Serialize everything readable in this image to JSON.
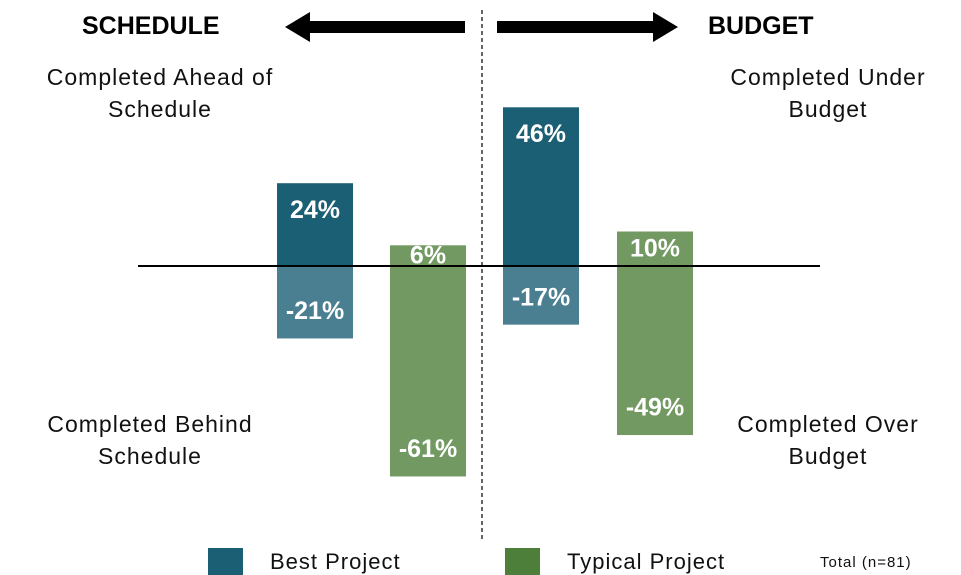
{
  "chart_data": {
    "type": "diverging-bar",
    "categories": [
      "SCHEDULE",
      "BUDGET"
    ],
    "top_labels": [
      "Completed Ahead of Schedule",
      "Completed Under Budget"
    ],
    "bottom_labels": [
      "Completed Behind Schedule",
      "Completed Over Budget"
    ],
    "series": [
      {
        "name": "Best Project",
        "color": "#1b5f75",
        "positive": [
          24,
          46
        ],
        "positive_labels": [
          "24%",
          "46%"
        ],
        "negative": [
          -21,
          -17
        ],
        "negative_labels": [
          "-21%",
          "-17%"
        ]
      },
      {
        "name": "Typical Project",
        "color": "#4e7f3a",
        "positive": [
          6,
          10
        ],
        "positive_labels": [
          "6%",
          "10%"
        ],
        "negative": [
          -61,
          -49
        ],
        "negative_labels": [
          "-61%",
          "-49%"
        ]
      }
    ],
    "note": "Total (n=81)"
  }
}
